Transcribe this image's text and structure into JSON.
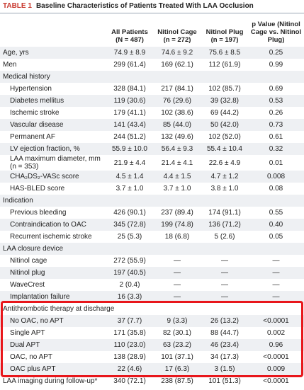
{
  "title": {
    "label": "TABLE 1",
    "text": "Baseline Characteristics of Patients Treated With LAA Occlusion"
  },
  "table": {
    "header": [
      "",
      "All Patients (N = 487)",
      "Nitinol Cage (n = 272)",
      "Nitinol Plug (n = 197)",
      "p Value (Nitinol Cage vs. Nitinol Plug)"
    ],
    "sections": [
      {
        "rows": [
          [
            "Age, yrs",
            "74.9 ± 8.9",
            "74.6 ± 9.2",
            "75.6 ± 8.5",
            "0.25"
          ],
          [
            "Men",
            "299 (61.4)",
            "169 (62.1)",
            "112 (61.9)",
            "0.99"
          ]
        ]
      },
      {
        "title": "Medical history",
        "rows": [
          [
            "Hypertension",
            "328 (84.1)",
            "217 (84.1)",
            "102 (85.7)",
            "0.69"
          ],
          [
            "Diabetes mellitus",
            "119 (30.6)",
            "76 (29.6)",
            "39 (32.8)",
            "0.53"
          ],
          [
            "Ischemic stroke",
            "179 (41.1)",
            "102 (38.6)",
            "69 (44.2)",
            "0.26"
          ],
          [
            "Vascular disease",
            "141 (43.4)",
            "85 (44.0)",
            "50 (42.0)",
            "0.73"
          ],
          [
            "Permanent AF",
            "244 (51.2)",
            "132 (49.6)",
            "102 (52.0)",
            "0.61"
          ],
          [
            "LV ejection fraction, %",
            "55.9 ± 10.0",
            "56.4 ± 9.3",
            "55.4 ± 10.4",
            "0.32"
          ],
          [
            "LAA maximum diameter, mm (n = 353)",
            "21.9 ± 4.4",
            "21.4 ± 4.1",
            "22.6 ± 4.9",
            "0.01"
          ],
          [
            "CHA₂DS₂-VASc score",
            "4.5 ± 1.4",
            "4.4 ± 1.5",
            "4.7 ± 1.2",
            "0.008"
          ],
          [
            "HAS-BLED score",
            "3.7 ± 1.0",
            "3.7 ± 1.0",
            "3.8 ± 1.0",
            "0.08"
          ]
        ]
      },
      {
        "title": "Indication",
        "rows": [
          [
            "Previous bleeding",
            "426 (90.1)",
            "237 (89.4)",
            "174 (91.1)",
            "0.55"
          ],
          [
            "Contraindication to OAC",
            "345 (72.8)",
            "199 (74.8)",
            "136 (71.2)",
            "0.40"
          ],
          [
            "Recurrent ischemic stroke",
            "25 (5.3)",
            "18 (6.8)",
            "5 (2.6)",
            "0.05"
          ]
        ]
      },
      {
        "title": "LAA closure device",
        "rows": [
          [
            "Nitinol cage",
            "272 (55.9)",
            "—",
            "—",
            "—"
          ],
          [
            "Nitinol plug",
            "197 (40.5)",
            "—",
            "—",
            "—"
          ],
          [
            "WaveCrest",
            "2 (0.4)",
            "—",
            "—",
            "—"
          ],
          [
            "Implantation failure",
            "16 (3.3)",
            "—",
            "—",
            "—"
          ]
        ]
      },
      {
        "title": "Antithrombotic therapy at discharge",
        "rows": [
          [
            "No OAC, no APT",
            "37 (7.7)",
            "9 (3.3)",
            "26 (13.2)",
            "<0.0001"
          ],
          [
            "Single APT",
            "171 (35.8)",
            "82 (30.1)",
            "88 (44.7)",
            "0.002"
          ],
          [
            "Dual APT",
            "110 (23.0)",
            "63 (23.2)",
            "46 (23.4)",
            "0.96"
          ],
          [
            "OAC, no APT",
            "138 (28.9)",
            "101 (37.1)",
            "34 (17.3)",
            "<0.0001"
          ],
          [
            "OAC plus APT",
            "22 (4.6)",
            "17 (6.3)",
            "3 (1.5)",
            "0.009"
          ]
        ]
      },
      {
        "rows": [
          [
            "LAA imaging during follow-up*",
            "340 (72.1)",
            "238 (87.5)",
            "101 (51.3)",
            "<0.0001"
          ]
        ]
      }
    ]
  }
}
